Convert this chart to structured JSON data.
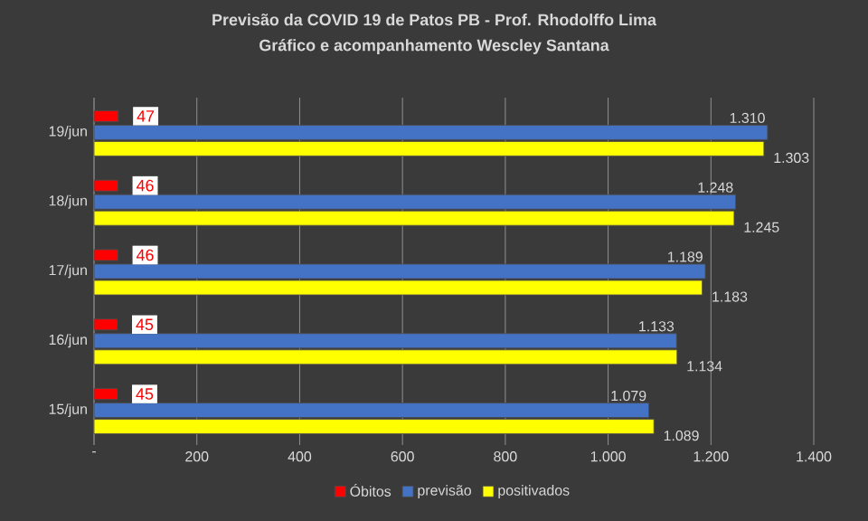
{
  "chart_data": {
    "type": "bar",
    "orientation": "horizontal",
    "title": "Previsão da COVID 19 de Patos PB - Prof. Rhodolffo Lima",
    "subtitle": "Gráfico e acompanhamento  Wescley Santana",
    "categories": [
      "19/jun",
      "18/jun",
      "17/jun",
      "16/jun",
      "15/jun"
    ],
    "series": [
      {
        "name": "Óbitos",
        "color": "#ff0000",
        "values": [
          47,
          46,
          46,
          45,
          45
        ],
        "value_labels": [
          "47",
          "46",
          "46",
          "45",
          "45"
        ]
      },
      {
        "name": "previsão",
        "color": "#4472c4",
        "values": [
          1310,
          1248,
          1189,
          1133,
          1079
        ],
        "value_labels": [
          "1.310",
          "1.248",
          "1.189",
          "1.133",
          "1.079"
        ]
      },
      {
        "name": "positivados",
        "color": "#ffff00",
        "values": [
          1303,
          1245,
          1183,
          1134,
          1089
        ],
        "value_labels": [
          "1.303",
          "1.245",
          "1.183",
          "1.134",
          "1.089"
        ]
      }
    ],
    "xlim": [
      0,
      1400
    ],
    "xticks": [
      {
        "value": 0,
        "label": "-"
      },
      200,
      400,
      600,
      800,
      {
        "value": 1000,
        "label": "1.000"
      },
      {
        "value": 1200,
        "label": "1.200"
      },
      {
        "value": 1400,
        "label": "1.400"
      }
    ],
    "grid": "x",
    "legend": "bottom"
  }
}
